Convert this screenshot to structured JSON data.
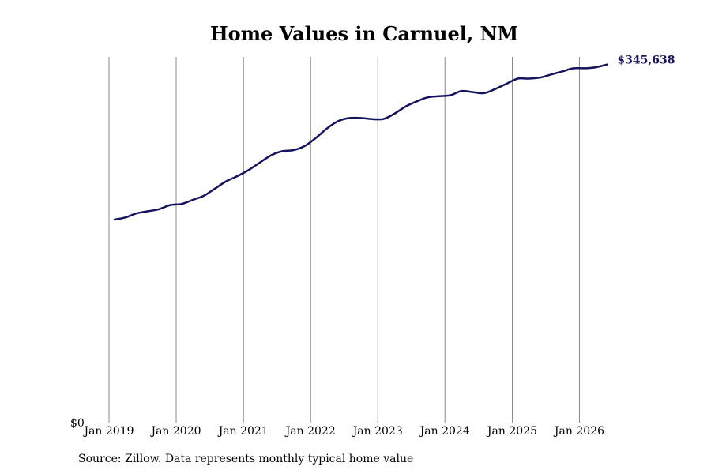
{
  "title": "Home Values in Carnuel, NM",
  "source": "Source: Zillow. Data represents monthly typical home value",
  "colors": {
    "line": "#15125e",
    "grid": "#888888",
    "text": "#000000"
  },
  "chart_data": {
    "type": "line",
    "title": "Home Values in Carnuel, NM",
    "xlabel": "",
    "ylabel": "",
    "grid": "vertical",
    "ylim": [
      0,
      353000
    ],
    "xlim": [
      "2018-11-01",
      "2026-12-01"
    ],
    "y_tick_labels": [
      {
        "value": 0,
        "label": "$0"
      }
    ],
    "x_tick_labels": [
      {
        "value": "2019-01-01",
        "label": "Jan 2019"
      },
      {
        "value": "2020-01-01",
        "label": "Jan 2020"
      },
      {
        "value": "2021-01-01",
        "label": "Jan 2021"
      },
      {
        "value": "2022-01-01",
        "label": "Jan 2022"
      },
      {
        "value": "2023-01-01",
        "label": "Jan 2023"
      },
      {
        "value": "2024-01-01",
        "label": "Jan 2024"
      },
      {
        "value": "2025-01-01",
        "label": "Jan 2025"
      },
      {
        "value": "2026-01-01",
        "label": "Jan 2026"
      }
    ],
    "end_label": "$345,638",
    "series": [
      {
        "points": [
          [
            "2019-01-31",
            196000
          ],
          [
            "2019-03-31",
            198000
          ],
          [
            "2019-05-31",
            202000
          ],
          [
            "2019-07-31",
            204000
          ],
          [
            "2019-09-30",
            206000
          ],
          [
            "2019-11-30",
            210000
          ],
          [
            "2020-01-31",
            211000
          ],
          [
            "2020-03-31",
            215000
          ],
          [
            "2020-05-31",
            219000
          ],
          [
            "2020-07-31",
            226000
          ],
          [
            "2020-09-30",
            233000
          ],
          [
            "2020-11-30",
            238000
          ],
          [
            "2021-01-31",
            244000
          ],
          [
            "2021-03-31",
            251000
          ],
          [
            "2021-05-31",
            258000
          ],
          [
            "2021-07-31",
            262000
          ],
          [
            "2021-09-30",
            263000
          ],
          [
            "2021-11-30",
            267000
          ],
          [
            "2022-01-31",
            275000
          ],
          [
            "2022-03-31",
            284000
          ],
          [
            "2022-05-31",
            291000
          ],
          [
            "2022-07-31",
            294000
          ],
          [
            "2022-09-30",
            294000
          ],
          [
            "2022-11-30",
            293000
          ],
          [
            "2023-01-31",
            293000
          ],
          [
            "2023-03-31",
            298000
          ],
          [
            "2023-05-31",
            305000
          ],
          [
            "2023-07-31",
            310000
          ],
          [
            "2023-09-30",
            314000
          ],
          [
            "2023-11-30",
            315000
          ],
          [
            "2024-01-31",
            316000
          ],
          [
            "2024-03-31",
            320000
          ],
          [
            "2024-05-31",
            319000
          ],
          [
            "2024-07-31",
            318000
          ],
          [
            "2024-09-30",
            322000
          ],
          [
            "2024-11-30",
            327000
          ],
          [
            "2025-01-31",
            332000
          ],
          [
            "2025-03-31",
            332000
          ],
          [
            "2025-05-31",
            333000
          ],
          [
            "2025-07-31",
            336000
          ],
          [
            "2025-09-30",
            339000
          ],
          [
            "2025-11-30",
            342000
          ],
          [
            "2026-01-31",
            342000
          ],
          [
            "2026-03-31",
            343000
          ],
          [
            "2026-05-31",
            345638
          ]
        ]
      }
    ]
  }
}
